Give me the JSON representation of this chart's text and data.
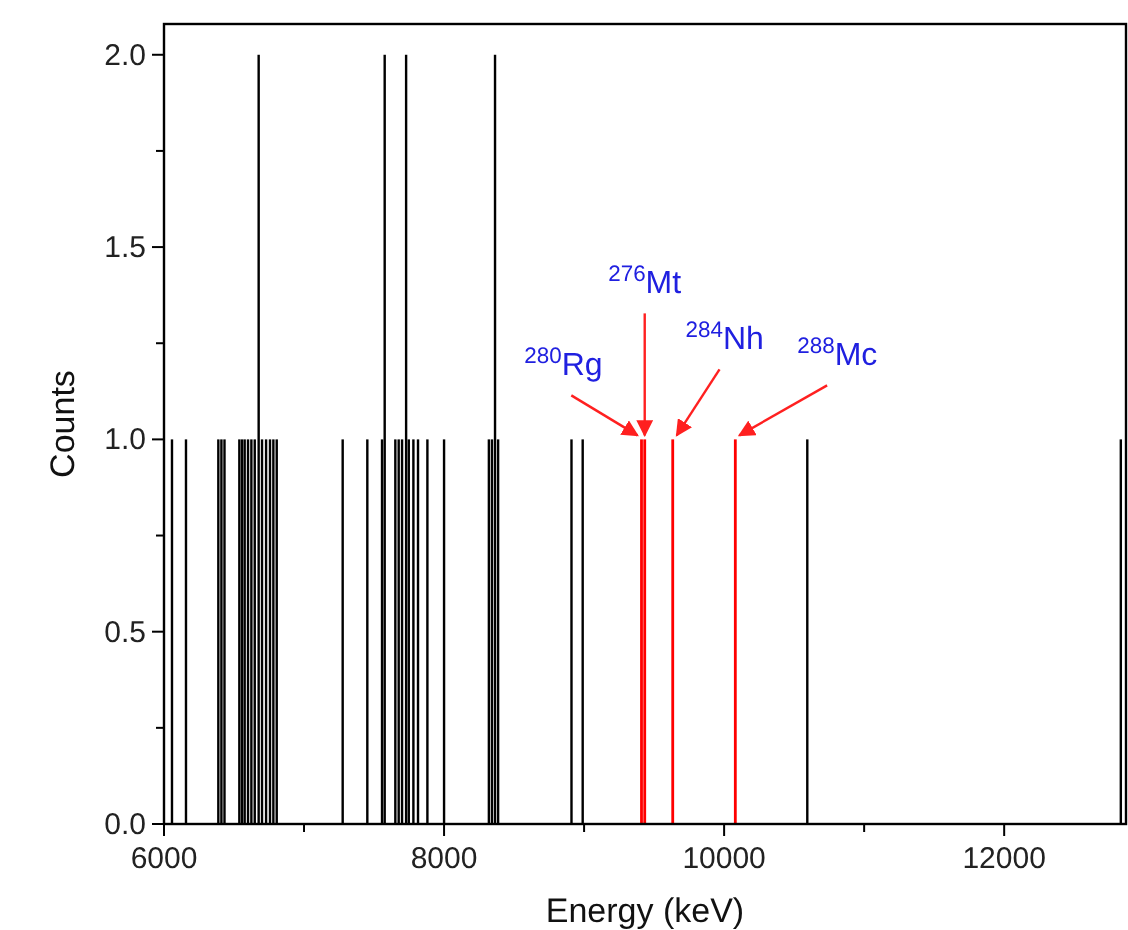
{
  "chart_data": {
    "type": "bar",
    "xlabel": "Energy (keV)",
    "ylabel": "Counts",
    "xlim": [
      6000,
      12870
    ],
    "ylim": [
      0,
      2.08
    ],
    "xticks": [
      6000,
      {
        "value": 7000,
        "label": null
      },
      8000,
      {
        "value": 9000,
        "label": null
      },
      10000,
      {
        "value": 11000,
        "label": null
      },
      12000
    ],
    "yticks": [
      {
        "value": 0,
        "label": "0.0"
      },
      {
        "value": 0.25,
        "label": null
      },
      0.5,
      {
        "value": 0.75,
        "label": null
      },
      {
        "value": 1,
        "label": "1.0"
      },
      {
        "value": 1.25,
        "label": null
      },
      1.5,
      {
        "value": 1.75,
        "label": null
      },
      {
        "value": 2,
        "label": "2.0"
      }
    ],
    "grid": false,
    "series": [
      {
        "color": "#000000",
        "x": [
          6057,
          6157,
          6388,
          6410,
          6432,
          6538,
          6557,
          6576,
          6600,
          6624,
          6648,
          6676,
          6700,
          6729,
          6757,
          6781,
          6805,
          7276,
          7452,
          7557,
          7576,
          7652,
          7676,
          7700,
          7729,
          7748,
          7781,
          7814,
          7881,
          8000,
          8320,
          8342,
          8364,
          8386,
          8910,
          8990,
          10594,
          12833
        ],
        "values": [
          1,
          1,
          1,
          1,
          1,
          1,
          1,
          1,
          1,
          1,
          1,
          2,
          1,
          1,
          1,
          1,
          1,
          1,
          1,
          1,
          2,
          1,
          1,
          1,
          2,
          1,
          1,
          1,
          1,
          1,
          1,
          1,
          2,
          1,
          1,
          1,
          1,
          1
        ]
      },
      {
        "color": "#ff0000",
        "x": [
          9410,
          9433,
          9633,
          10080
        ],
        "values": [
          1,
          1,
          1,
          1
        ]
      }
    ],
    "annotations": [
      {
        "text": "$^{280}$Rg",
        "x": 9410,
        "y": 1
      },
      {
        "text": "$^{276}$Mt",
        "x": 9433,
        "y": 1
      },
      {
        "text": "$^{284}$Nh",
        "x": 9633,
        "y": 1
      },
      {
        "text": "$^{288}$Mc",
        "x": 10080,
        "y": 1
      }
    ]
  }
}
